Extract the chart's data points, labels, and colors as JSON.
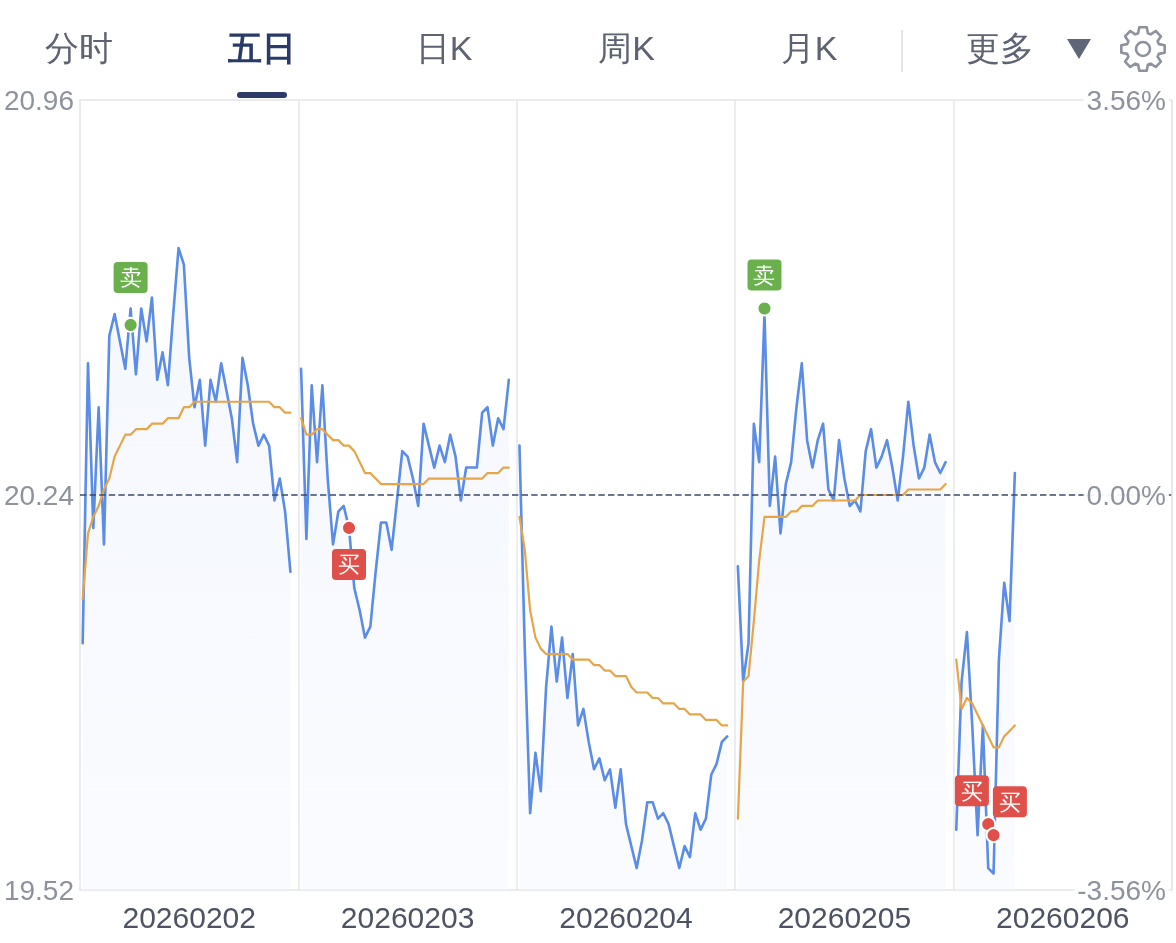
{
  "chart_data": {
    "type": "area",
    "annotations": [
      "分时",
      "五日",
      "日K",
      "周K",
      "月K",
      "更多"
    ],
    "categories": [
      null,
      null,
      null,
      null,
      null,
      null,
      null,
      null,
      null,
      null,
      null,
      null,
      null,
      null,
      null,
      null,
      null,
      null,
      null,
      null,
      "20260202",
      null,
      null,
      null,
      null,
      null,
      null,
      null,
      null,
      null,
      null,
      null,
      null,
      null,
      null,
      null,
      null,
      null,
      null,
      null,
      null,
      null,
      null,
      null,
      null,
      null,
      null,
      null,
      null,
      null,
      null,
      null,
      null,
      null,
      null,
      null,
      null,
      null,
      null,
      null,
      null,
      "20260203",
      null,
      null,
      null,
      null,
      null,
      null,
      null,
      null,
      null,
      null,
      null,
      null,
      null,
      null,
      null,
      null,
      null,
      null,
      null,
      null,
      null,
      null,
      null,
      null,
      null,
      null,
      null,
      null,
      null,
      null,
      null,
      null,
      null,
      null,
      null,
      null,
      null,
      null,
      null,
      null,
      "20260204",
      null,
      null,
      null,
      null,
      null,
      null,
      null,
      null,
      null,
      null,
      null,
      null,
      null,
      null,
      null,
      null,
      null,
      null,
      null,
      null,
      null,
      null,
      null,
      null,
      null,
      null,
      null,
      null,
      null,
      null,
      null,
      null,
      null,
      null,
      null,
      null,
      null,
      null,
      null,
      null,
      "20260205",
      null,
      null,
      null,
      null,
      null,
      null,
      null,
      null,
      null,
      null,
      null,
      null,
      null,
      null,
      null,
      null,
      null,
      null,
      null,
      null,
      null,
      null,
      null,
      null,
      null,
      null,
      null,
      null,
      null,
      null,
      null,
      null,
      null,
      null,
      null,
      null,
      null,
      null,
      null,
      null,
      "20260206",
      null,
      null,
      null,
      null,
      null,
      null,
      null,
      null,
      null,
      null,
      null,
      null,
      null,
      null,
      null,
      null,
      null,
      null,
      null,
      null
    ],
    "ylim": [
      19.52,
      20.96
    ],
    "yticks": [
      19.52,
      20.24,
      20.96
    ],
    "y2lim": [
      -3.56,
      3.56
    ],
    "y2ticks": [
      {
        "value": -3.56,
        "label": "-3.56%"
      },
      {
        "value": 0,
        "label": "0.00%"
      },
      {
        "value": 3.56,
        "label": "3.56%"
      }
    ],
    "grid": "x",
    "ref_lines": [
      {
        "axis": "y",
        "value": 20.24,
        "color": "#3b4a6e",
        "line_style": "dashed"
      }
    ],
    "series": [
      {
        "color": "#5b8ce6",
        "values": [
          19.97,
          20.48,
          20.18,
          20.4,
          20.15,
          20.53,
          20.57,
          20.52,
          20.47,
          20.58,
          20.46,
          20.58,
          20.52,
          20.6,
          20.45,
          20.5,
          20.44,
          20.57,
          20.69,
          20.66,
          20.49,
          20.4,
          20.45,
          20.33,
          20.45,
          20.41,
          20.48,
          20.43,
          20.38,
          20.3,
          20.49,
          20.44,
          20.37,
          20.33,
          20.35,
          20.33,
          20.23,
          20.27,
          20.21,
          20.1,
          null,
          20.47,
          20.16,
          20.44,
          20.3,
          20.44,
          20.27,
          20.15,
          20.21,
          20.22,
          20.18,
          20.07,
          20.03,
          19.98,
          20.0,
          20.1,
          20.19,
          20.19,
          20.14,
          20.23,
          20.32,
          20.31,
          20.27,
          20.22,
          20.37,
          20.33,
          20.29,
          20.33,
          20.3,
          20.35,
          20.31,
          20.23,
          20.29,
          20.29,
          20.29,
          20.39,
          20.4,
          20.33,
          20.38,
          20.36,
          20.45,
          null,
          20.33,
          19.96,
          19.66,
          19.77,
          19.7,
          19.89,
          20.0,
          19.9,
          19.98,
          19.87,
          19.95,
          19.82,
          19.85,
          19.79,
          19.74,
          19.76,
          19.72,
          19.74,
          19.67,
          19.74,
          19.64,
          19.6,
          19.56,
          19.61,
          19.68,
          19.68,
          19.65,
          19.66,
          19.64,
          19.6,
          19.56,
          19.6,
          19.58,
          19.66,
          19.63,
          19.65,
          19.73,
          19.75,
          19.79,
          19.8,
          null,
          20.11,
          19.9,
          19.97,
          20.37,
          20.3,
          20.57,
          20.22,
          20.31,
          20.17,
          20.26,
          20.3,
          20.4,
          20.48,
          20.34,
          20.29,
          20.34,
          20.37,
          20.25,
          20.23,
          20.34,
          20.27,
          20.22,
          20.23,
          20.21,
          20.32,
          20.36,
          20.29,
          20.31,
          20.34,
          20.29,
          20.23,
          20.31,
          20.41,
          20.33,
          20.27,
          20.29,
          20.35,
          20.3,
          20.28,
          20.3,
          null,
          19.63,
          19.9,
          19.99,
          19.82,
          19.62,
          19.82,
          19.56,
          19.55,
          19.94,
          20.08,
          20.01,
          20.28,
          null,
          null,
          null,
          null,
          null,
          null,
          null,
          null,
          null,
          null,
          null,
          null,
          null,
          null,
          null,
          null,
          null,
          null,
          null,
          null,
          null,
          null,
          null,
          null,
          null,
          null,
          null,
          null,
          null
        ]
      },
      {
        "type": "line",
        "color": "#e6a548",
        "values": [
          20.05,
          20.17,
          20.2,
          20.22,
          20.25,
          20.27,
          20.31,
          20.33,
          20.35,
          20.35,
          20.36,
          20.36,
          20.36,
          20.37,
          20.37,
          20.37,
          20.38,
          20.38,
          20.38,
          20.4,
          20.4,
          20.41,
          20.41,
          20.41,
          20.41,
          20.41,
          20.41,
          20.41,
          20.41,
          20.41,
          20.41,
          20.41,
          20.41,
          20.41,
          20.41,
          20.41,
          20.4,
          20.4,
          20.39,
          20.39,
          null,
          20.38,
          20.35,
          20.35,
          20.36,
          20.36,
          20.35,
          20.34,
          20.34,
          20.33,
          20.33,
          20.32,
          20.3,
          20.28,
          20.28,
          20.27,
          20.26,
          20.26,
          20.26,
          20.26,
          20.26,
          20.26,
          20.26,
          20.26,
          20.26,
          20.27,
          20.27,
          20.27,
          20.27,
          20.27,
          20.27,
          20.27,
          20.27,
          20.27,
          20.27,
          20.27,
          20.28,
          20.28,
          20.28,
          20.29,
          20.29,
          null,
          20.2,
          20.14,
          20.03,
          19.98,
          19.96,
          19.95,
          19.95,
          19.95,
          19.95,
          19.95,
          19.94,
          19.94,
          19.94,
          19.94,
          19.93,
          19.93,
          19.92,
          19.92,
          19.91,
          19.91,
          19.91,
          19.89,
          19.88,
          19.88,
          19.88,
          19.87,
          19.87,
          19.86,
          19.86,
          19.86,
          19.85,
          19.85,
          19.84,
          19.84,
          19.84,
          19.83,
          19.83,
          19.83,
          19.82,
          19.82,
          null,
          19.65,
          19.9,
          19.91,
          20.01,
          20.12,
          20.2,
          20.2,
          20.2,
          20.2,
          20.2,
          20.21,
          20.21,
          20.22,
          20.22,
          20.22,
          20.23,
          20.23,
          20.23,
          20.23,
          20.23,
          20.23,
          20.23,
          20.23,
          20.24,
          20.24,
          20.24,
          20.24,
          20.24,
          20.24,
          20.24,
          20.24,
          20.24,
          20.25,
          20.25,
          20.25,
          20.25,
          20.25,
          20.25,
          20.25,
          20.26,
          null,
          19.94,
          19.85,
          19.87,
          19.86,
          19.84,
          19.82,
          19.8,
          19.78,
          19.78,
          19.8,
          19.81,
          19.82,
          null,
          null,
          null,
          null,
          null,
          null,
          null,
          null,
          null,
          null,
          null,
          null,
          null,
          null,
          null,
          null,
          null,
          null,
          null,
          null,
          null,
          null,
          null,
          null,
          null,
          null,
          null,
          null,
          null
        ]
      },
      {
        "type": "scatter",
        "color": "#e0504b",
        "values": [
          null,
          null,
          null,
          null,
          null,
          null,
          null,
          null,
          null,
          null,
          null,
          null,
          null,
          null,
          null,
          null,
          null,
          null,
          null,
          null,
          null,
          null,
          null,
          null,
          null,
          null,
          null,
          null,
          null,
          null,
          null,
          null,
          null,
          null,
          null,
          null,
          null,
          null,
          null,
          null,
          null,
          null,
          null,
          null,
          null,
          null,
          null,
          null,
          null,
          null,
          20.18,
          null,
          null,
          null,
          null,
          null,
          null,
          null,
          null,
          null,
          null,
          null,
          null,
          null,
          null,
          null,
          null,
          null,
          null,
          null,
          null,
          null,
          null,
          null,
          null,
          null,
          null,
          null,
          null,
          null,
          null,
          null,
          null,
          null,
          null,
          null,
          null,
          null,
          null,
          null,
          null,
          null,
          null,
          null,
          null,
          null,
          null,
          null,
          null,
          null,
          null,
          null,
          null,
          null,
          null,
          null,
          null,
          null,
          null,
          null,
          null,
          null,
          null,
          null,
          null,
          null,
          null,
          null,
          null,
          null,
          null,
          null,
          null,
          null,
          null,
          null,
          null,
          null,
          null,
          null,
          null,
          null,
          null,
          null,
          null,
          null,
          null,
          null,
          null,
          null,
          null,
          null,
          null,
          null,
          null,
          null,
          null,
          null,
          null,
          null,
          null,
          null,
          null,
          null,
          null,
          null,
          null,
          null,
          null,
          null,
          null,
          null,
          null,
          null,
          null,
          null,
          null,
          null,
          null,
          null,
          19.64,
          19.62,
          null,
          null,
          null,
          null,
          null,
          null,
          null,
          null,
          null,
          null,
          null,
          null,
          null,
          null,
          null,
          null,
          null,
          null,
          null,
          null,
          null,
          null,
          null,
          null,
          null,
          null,
          null,
          null,
          null,
          null,
          null,
          null,
          null
        ],
        "value_labels": [
          null,
          null,
          null,
          null,
          null,
          null,
          null,
          null,
          null,
          null,
          null,
          null,
          null,
          null,
          null,
          null,
          null,
          null,
          null,
          null,
          null,
          null,
          null,
          null,
          null,
          null,
          null,
          null,
          null,
          null,
          null,
          null,
          null,
          null,
          null,
          null,
          null,
          null,
          null,
          null,
          null,
          null,
          null,
          null,
          null,
          null,
          null,
          null,
          null,
          null,
          "买",
          null,
          null,
          null,
          null,
          null,
          null,
          null,
          null,
          null,
          null,
          null,
          null,
          null,
          null,
          null,
          null,
          null,
          null,
          null,
          null,
          null,
          null,
          null,
          null,
          null,
          null,
          null,
          null,
          null,
          null,
          null,
          null,
          null,
          null,
          null,
          null,
          null,
          null,
          null,
          null,
          null,
          null,
          null,
          null,
          null,
          null,
          null,
          null,
          null,
          null,
          null,
          null,
          null,
          null,
          null,
          null,
          null,
          null,
          null,
          null,
          null,
          null,
          null,
          null,
          null,
          null,
          null,
          null,
          null,
          null,
          null,
          null,
          null,
          null,
          null,
          null,
          null,
          null,
          null,
          null,
          null,
          null,
          null,
          null,
          null,
          null,
          null,
          null,
          null,
          null,
          null,
          null,
          null,
          null,
          null,
          null,
          null,
          null,
          null,
          null,
          null,
          null,
          null,
          null,
          null,
          null,
          null,
          null,
          null,
          null,
          null,
          null,
          null,
          null,
          null,
          null,
          null,
          null,
          null,
          "买",
          "买",
          null,
          null,
          null,
          null,
          null,
          null,
          null,
          null,
          null,
          null,
          null,
          null,
          null,
          null,
          null,
          null,
          null,
          null,
          null,
          null,
          null,
          null,
          null,
          null,
          null,
          null,
          null,
          null,
          null,
          null,
          null,
          null,
          null
        ]
      },
      {
        "type": "scatter",
        "color": "#6ab04c",
        "values": [
          null,
          null,
          null,
          null,
          null,
          null,
          null,
          null,
          null,
          20.55,
          null,
          null,
          null,
          null,
          null,
          null,
          null,
          null,
          null,
          null,
          null,
          null,
          null,
          null,
          null,
          null,
          null,
          null,
          null,
          null,
          null,
          null,
          null,
          null,
          null,
          null,
          null,
          null,
          null,
          null,
          null,
          null,
          null,
          null,
          null,
          null,
          null,
          null,
          null,
          null,
          null,
          null,
          null,
          null,
          null,
          null,
          null,
          null,
          null,
          null,
          null,
          null,
          null,
          null,
          null,
          null,
          null,
          null,
          null,
          null,
          null,
          null,
          null,
          null,
          null,
          null,
          null,
          null,
          null,
          null,
          null,
          null,
          null,
          null,
          null,
          null,
          null,
          null,
          null,
          null,
          null,
          null,
          null,
          null,
          null,
          null,
          null,
          null,
          null,
          null,
          null,
          null,
          null,
          null,
          null,
          null,
          null,
          null,
          null,
          null,
          null,
          null,
          null,
          null,
          null,
          null,
          null,
          null,
          null,
          null,
          null,
          null,
          null,
          null,
          null,
          null,
          null,
          null,
          20.58,
          null,
          null,
          null,
          null,
          null,
          null,
          null,
          null,
          null,
          null,
          null,
          null,
          null,
          null,
          null,
          null,
          null,
          null,
          null,
          null,
          null,
          null,
          null,
          null,
          null,
          null,
          null,
          null,
          null,
          null,
          null,
          null,
          null,
          null,
          null,
          null,
          null,
          null,
          null,
          null,
          null,
          null,
          null,
          null,
          null,
          null,
          null,
          null,
          null,
          null,
          null,
          null,
          null,
          null,
          null,
          null,
          null,
          null,
          null,
          null,
          null,
          null,
          null,
          null,
          null,
          null,
          null,
          null,
          null,
          null,
          null,
          null,
          null,
          null,
          null,
          null
        ],
        "value_labels": [
          null,
          null,
          null,
          null,
          null,
          null,
          null,
          null,
          null,
          "卖",
          null,
          null,
          null,
          null,
          null,
          null,
          null,
          null,
          null,
          null,
          null,
          null,
          null,
          null,
          null,
          null,
          null,
          null,
          null,
          null,
          null,
          null,
          null,
          null,
          null,
          null,
          null,
          null,
          null,
          null,
          null,
          null,
          null,
          null,
          null,
          null,
          null,
          null,
          null,
          null,
          null,
          null,
          null,
          null,
          null,
          null,
          null,
          null,
          null,
          null,
          null,
          null,
          null,
          null,
          null,
          null,
          null,
          null,
          null,
          null,
          null,
          null,
          null,
          null,
          null,
          null,
          null,
          null,
          null,
          null,
          null,
          null,
          null,
          null,
          null,
          null,
          null,
          null,
          null,
          null,
          null,
          null,
          null,
          null,
          null,
          null,
          null,
          null,
          null,
          null,
          null,
          null,
          null,
          null,
          null,
          null,
          null,
          null,
          null,
          null,
          null,
          null,
          null,
          null,
          null,
          null,
          null,
          null,
          null,
          null,
          null,
          null,
          null,
          null,
          null,
          null,
          null,
          null,
          "卖",
          null,
          null,
          null,
          null,
          null,
          null,
          null,
          null,
          null,
          null,
          null,
          null,
          null,
          null,
          null,
          null,
          null,
          null,
          null,
          null,
          null,
          null,
          null,
          null,
          null,
          null,
          null,
          null,
          null,
          null,
          null,
          null,
          null,
          null,
          null,
          null,
          null,
          null,
          null,
          null,
          null,
          null,
          null,
          null,
          null,
          null,
          null,
          null,
          null,
          null,
          null,
          null,
          null,
          null,
          null,
          null,
          null,
          null,
          null,
          null,
          null,
          null,
          null,
          null,
          null,
          null,
          null,
          null,
          null,
          null,
          null,
          null,
          null,
          null,
          null,
          null
        ]
      }
    ]
  }
}
